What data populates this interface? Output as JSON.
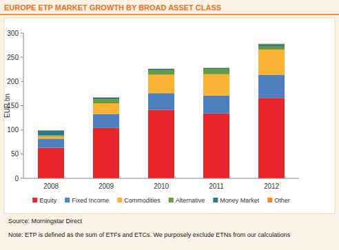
{
  "chart_data": {
    "type": "bar",
    "title": "EUROPE ETP MARKET GROWTH BY BROAD ASSET CLASS",
    "y_label": "EUR bn",
    "categories": [
      "2008",
      "2009",
      "2010",
      "2011",
      "2012"
    ],
    "series": [
      {
        "name": "Equity",
        "color": "#e8262b",
        "values": [
          63,
          104,
          141,
          134,
          166
        ]
      },
      {
        "name": "Fixed Income",
        "color": "#4f7fbe",
        "values": [
          19,
          29,
          35,
          37,
          48
        ]
      },
      {
        "name": "Commodities",
        "color": "#f9b233",
        "values": [
          5,
          22,
          38,
          44,
          52
        ]
      },
      {
        "name": "Alternative",
        "color": "#6a9a3a",
        "values": [
          2,
          8,
          9,
          10,
          7
        ]
      },
      {
        "name": "Money Market",
        "color": "#2b7a8c",
        "values": [
          10,
          4,
          3,
          3,
          4
        ]
      },
      {
        "name": "Other",
        "color": "#f08a24",
        "values": [
          0.5,
          0.5,
          0.5,
          0.5,
          1
        ]
      }
    ],
    "ylim": [
      0,
      300
    ],
    "yticks": [
      0,
      50,
      100,
      150,
      200,
      250,
      300
    ],
    "stacked": true,
    "grid": false,
    "legend": "bottom",
    "annotations": [
      "Source: Morningstar Direct",
      "Note: ETP is defined as the sum of ETFs and ETCs. We purposely exclude ETNs from our calculations"
    ]
  }
}
